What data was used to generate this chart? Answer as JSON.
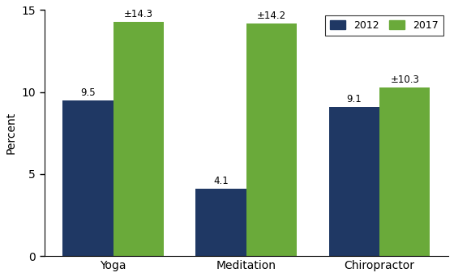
{
  "categories": [
    "Yoga",
    "Meditation",
    "Chiropractor"
  ],
  "values_2012": [
    9.5,
    4.1,
    9.1
  ],
  "values_2017": [
    14.3,
    14.2,
    10.3
  ],
  "labels_2012": [
    "9.5",
    "4.1",
    "9.1"
  ],
  "labels_2017": [
    "±14.3",
    "±14.2",
    "±10.3"
  ],
  "color_2012": "#1f3864",
  "color_2017": "#6aaa3a",
  "legend_labels": [
    "2012",
    "2017"
  ],
  "ylabel": "Percent",
  "ylim": [
    0,
    15
  ],
  "yticks": [
    0,
    5,
    10,
    15
  ],
  "bar_width": 0.38,
  "figsize": [
    5.6,
    3.42
  ],
  "dpi": 100
}
